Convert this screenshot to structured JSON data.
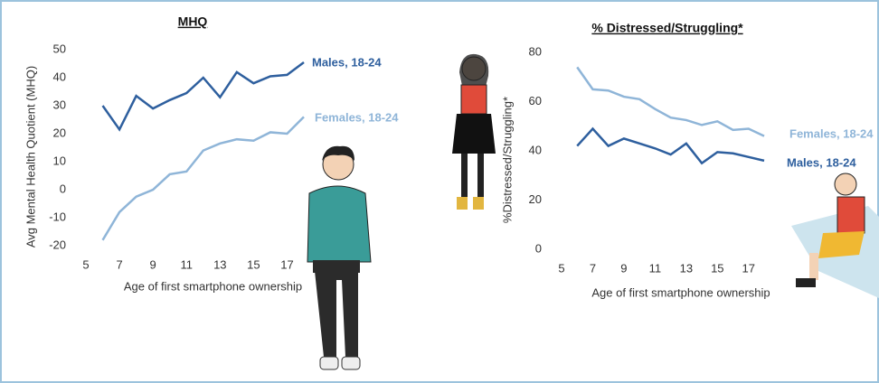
{
  "chart_data": [
    {
      "type": "line",
      "title": "MHQ",
      "x_label": "Age of first smartphone ownership",
      "y_label": "Avg Mental Health Quotient (MHQ)",
      "x": [
        6,
        7,
        8,
        9,
        10,
        11,
        12,
        13,
        14,
        15,
        16,
        17,
        18
      ],
      "series": [
        {
          "name": "Males, 18-24",
          "color": "#2e5f9e",
          "values": [
            30,
            21.5,
            33.5,
            29,
            32,
            34.5,
            40,
            33,
            42,
            38,
            40.5,
            41,
            45.5
          ]
        },
        {
          "name": "Females, 18-24",
          "color": "#8fb5d8",
          "values": [
            -18,
            -8,
            -2.5,
            0,
            5.5,
            6.5,
            14,
            16.5,
            18,
            17.5,
            20.5,
            20,
            26
          ]
        }
      ],
      "xlim": [
        5,
        18
      ],
      "xticks": [
        5,
        7,
        9,
        11,
        13,
        15,
        17
      ],
      "ylim": [
        -20,
        50
      ],
      "yticks": [
        -20,
        -10,
        0,
        10,
        20,
        30,
        40,
        50
      ]
    },
    {
      "type": "line",
      "title": "% Distressed/Struggling*",
      "x_label": "Age of first smartphone ownership",
      "y_label": "%Distressed/Struggling*",
      "x": [
        6,
        7,
        8,
        9,
        10,
        11,
        12,
        13,
        14,
        15,
        16,
        17,
        18
      ],
      "series": [
        {
          "name": "Females, 18-24",
          "color": "#8fb5d8",
          "values": [
            74,
            65,
            64.5,
            62,
            61,
            57,
            53.5,
            52.5,
            50.5,
            52,
            48.5,
            49,
            46
          ]
        },
        {
          "name": "Males, 18-24",
          "color": "#2e5f9e",
          "values": [
            42,
            49,
            42,
            45,
            43,
            41,
            38.5,
            43,
            35,
            39.5,
            39,
            37.5,
            36
          ]
        }
      ],
      "xlim": [
        5,
        18
      ],
      "xticks": [
        5,
        7,
        9,
        11,
        13,
        15,
        17
      ],
      "ylim": [
        0,
        80
      ],
      "yticks": [
        0,
        20,
        40,
        60,
        80
      ]
    }
  ]
}
